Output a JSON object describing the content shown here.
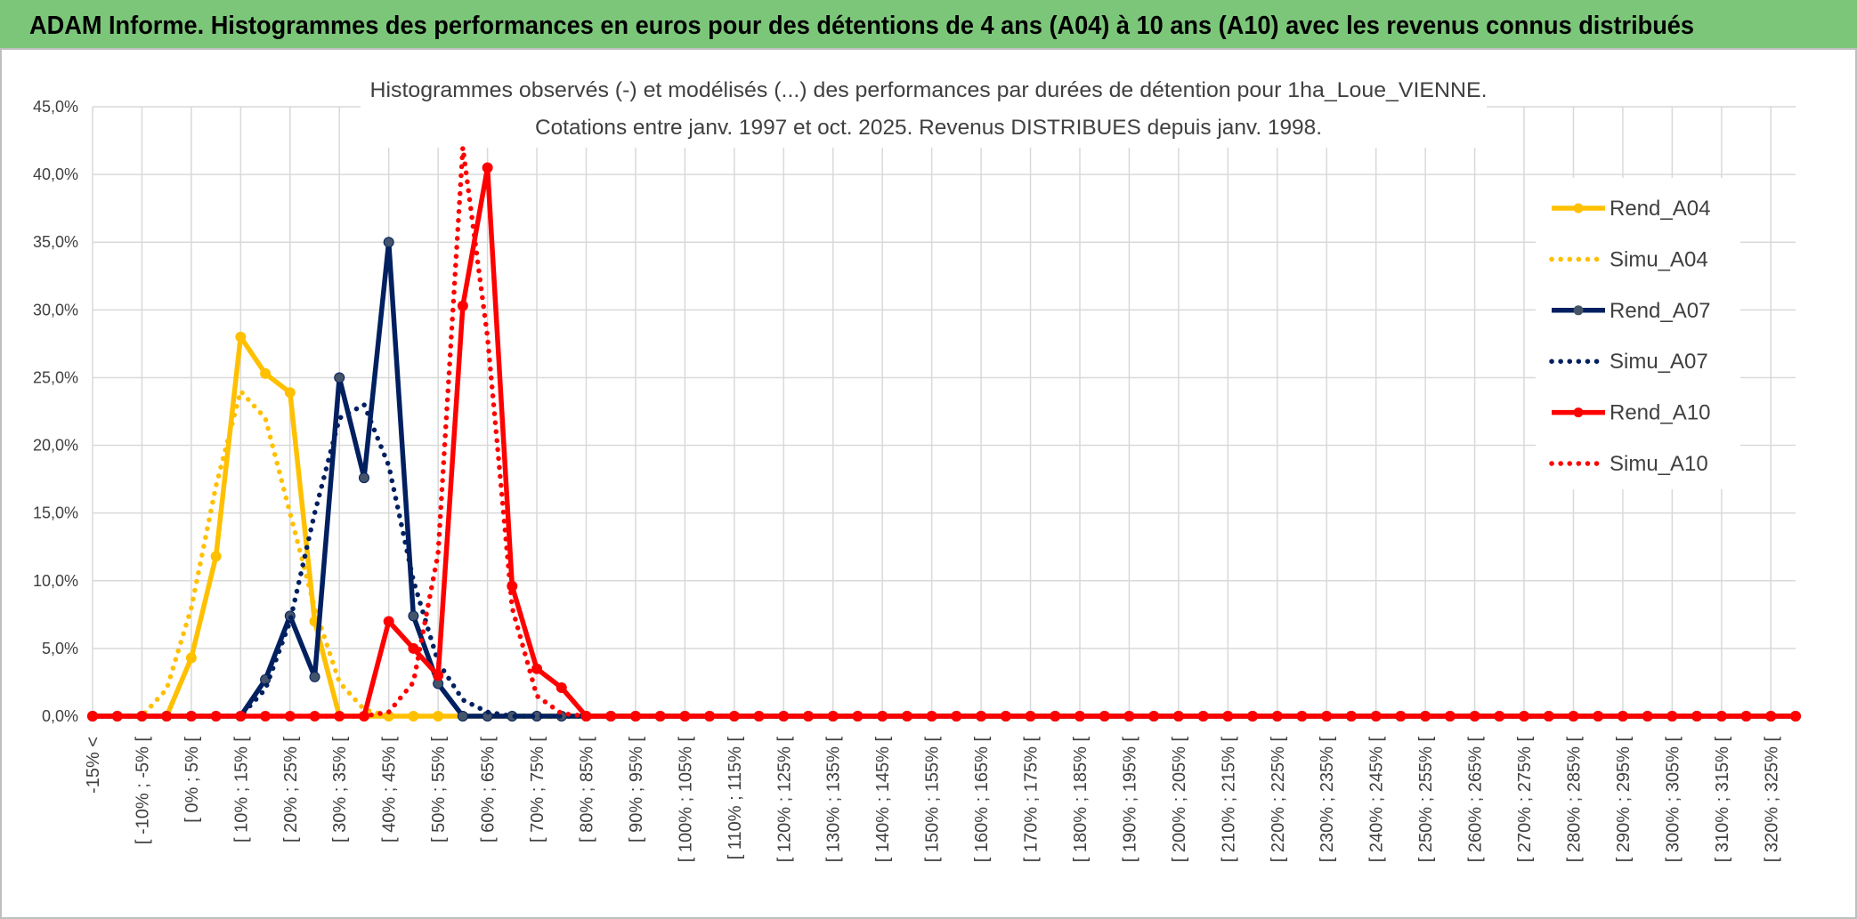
{
  "header": {
    "title": "ADAM Informe. Histogrammes des performances en euros pour des détentions de 4 ans (A04) à 10 ans (A10) avec les revenus connus distribués"
  },
  "chart_data": {
    "type": "line",
    "title": [
      "Histogrammes observés (-) et modélisés (...) des performances par durées de détention pour 1ha_Loue_VIENNE.",
      "Cotations entre janv. 1997 et oct. 2025. Revenus DISTRIBUES depuis janv. 1998."
    ],
    "categories": [
      "-15% <",
      null,
      "[ -10% ; -5% [",
      null,
      "[ 0% ; 5% [",
      null,
      "[ 10% ; 15% [",
      null,
      "[ 20% ; 25% [",
      null,
      "[ 30% ; 35% [",
      null,
      "[ 40% ; 45% [",
      null,
      "[ 50% ; 55% [",
      null,
      "[ 60% ; 65% [",
      null,
      "[ 70% ; 75% [",
      null,
      "[ 80% ; 85% [",
      null,
      "[ 90% ; 95% [",
      null,
      "[ 100% ; 105% [",
      null,
      "[ 110% ; 115% [",
      null,
      "[ 120% ; 125% [",
      null,
      "[ 130% ; 135% [",
      null,
      "[ 140% ; 145% [",
      null,
      "[ 150% ; 155% [",
      null,
      "[ 160% ; 165% [",
      null,
      "[ 170% ; 175% [",
      null,
      "[ 180% ; 185% [",
      null,
      "[ 190% ; 195% [",
      null,
      "[ 200% ; 205% [",
      null,
      "[ 210% ; 215% [",
      null,
      "[ 220% ; 225% [",
      null,
      "[ 230% ; 235% [",
      null,
      "[ 240% ; 245% [",
      null,
      "[ 250% ; 255% [",
      null,
      "[ 260% ; 265% [",
      null,
      "[ 270% ; 275% [",
      null,
      "[ 280% ; 285% [",
      null,
      "[ 290% ; 295% [",
      null,
      "[ 300% ; 305% [",
      null,
      "[ 310% ; 315% [",
      null,
      "[ 320% ; 325% [",
      null
    ],
    "series": [
      {
        "name": "Rend_A04",
        "color": "#FFC000",
        "style": "solid",
        "markers": true,
        "values": [
          0,
          0,
          0,
          0,
          4.3,
          11.8,
          28,
          25.3,
          23.9,
          7,
          0,
          0,
          0,
          0,
          0,
          0,
          0,
          0,
          0,
          0,
          0,
          0,
          0,
          0,
          0,
          0,
          0,
          0,
          0,
          0,
          0,
          0,
          0,
          0,
          0,
          0,
          0,
          0,
          0,
          0,
          0,
          0,
          0,
          0,
          0,
          0,
          0,
          0,
          0,
          0,
          0,
          0,
          0,
          0,
          0,
          0,
          0,
          0,
          0,
          0,
          0,
          0,
          0,
          0,
          0,
          0,
          0,
          0,
          0,
          0
        ]
      },
      {
        "name": "Simu_A04",
        "color": "#FFC000",
        "style": "dotted",
        "markers": false,
        "values": [
          0,
          0,
          0,
          2,
          8,
          17,
          24,
          22,
          15,
          8,
          2.5,
          0.5,
          0,
          0,
          0,
          0,
          0,
          0,
          0,
          0,
          0,
          0,
          0,
          0,
          0,
          0,
          0,
          0,
          0,
          0,
          0,
          0,
          0,
          0,
          0,
          0,
          0,
          0,
          0,
          0,
          0,
          0,
          0,
          0,
          0,
          0,
          0,
          0,
          0,
          0,
          0,
          0,
          0,
          0,
          0,
          0,
          0,
          0,
          0,
          0,
          0,
          0,
          0,
          0,
          0,
          0,
          0,
          0,
          0,
          0
        ]
      },
      {
        "name": "Rend_A07",
        "color": "#002060",
        "style": "solid",
        "markers": true,
        "values": [
          0,
          0,
          0,
          0,
          0,
          0,
          0,
          2.7,
          7.4,
          2.9,
          25,
          17.6,
          35,
          7.4,
          2.4,
          0,
          0,
          0,
          0,
          0,
          0,
          0,
          0,
          0,
          0,
          0,
          0,
          0,
          0,
          0,
          0,
          0,
          0,
          0,
          0,
          0,
          0,
          0,
          0,
          0,
          0,
          0,
          0,
          0,
          0,
          0,
          0,
          0,
          0,
          0,
          0,
          0,
          0,
          0,
          0,
          0,
          0,
          0,
          0,
          0,
          0,
          0,
          0,
          0,
          0,
          0,
          0,
          0,
          0,
          0
        ]
      },
      {
        "name": "Simu_A07",
        "color": "#002060",
        "style": "dotted",
        "markers": false,
        "values": [
          0,
          0,
          0,
          0,
          0,
          0,
          0,
          2,
          7,
          15,
          22,
          23,
          18.5,
          10,
          4,
          1.2,
          0.3,
          0,
          0,
          0,
          0,
          0,
          0,
          0,
          0,
          0,
          0,
          0,
          0,
          0,
          0,
          0,
          0,
          0,
          0,
          0,
          0,
          0,
          0,
          0,
          0,
          0,
          0,
          0,
          0,
          0,
          0,
          0,
          0,
          0,
          0,
          0,
          0,
          0,
          0,
          0,
          0,
          0,
          0,
          0,
          0,
          0,
          0,
          0,
          0,
          0,
          0,
          0,
          0,
          0
        ]
      },
      {
        "name": "Rend_A10",
        "color": "#FF0000",
        "style": "solid",
        "markers": true,
        "values": [
          0,
          0,
          0,
          0,
          0,
          0,
          0,
          0,
          0,
          0,
          0,
          0,
          7,
          5,
          3,
          30.3,
          40.5,
          9.6,
          3.5,
          2.1,
          0,
          0,
          0,
          0,
          0,
          0,
          0,
          0,
          0,
          0,
          0,
          0,
          0,
          0,
          0,
          0,
          0,
          0,
          0,
          0,
          0,
          0,
          0,
          0,
          0,
          0,
          0,
          0,
          0,
          0,
          0,
          0,
          0,
          0,
          0,
          0,
          0,
          0,
          0,
          0,
          0,
          0,
          0,
          0,
          0,
          0,
          0,
          0,
          0,
          0
        ]
      },
      {
        "name": "Simu_A10",
        "color": "#FF0000",
        "style": "dotted",
        "markers": false,
        "values": [
          0,
          0,
          0,
          0,
          0,
          0,
          0,
          0,
          0,
          0,
          0,
          0,
          0.3,
          2.5,
          12,
          42,
          28,
          8,
          1.5,
          0.2,
          0,
          0,
          0,
          0,
          0,
          0,
          0,
          0,
          0,
          0,
          0,
          0,
          0,
          0,
          0,
          0,
          0,
          0,
          0,
          0,
          0,
          0,
          0,
          0,
          0,
          0,
          0,
          0,
          0,
          0,
          0,
          0,
          0,
          0,
          0,
          0,
          0,
          0,
          0,
          0,
          0,
          0,
          0,
          0,
          0,
          0,
          0,
          0,
          0,
          0
        ]
      }
    ],
    "ylim": [
      0,
      45
    ],
    "yticks": [
      {
        "value": 0,
        "label": "0,0%"
      },
      {
        "value": 5,
        "label": "5,0%"
      },
      {
        "value": 10,
        "label": "10,0%"
      },
      {
        "value": 15,
        "label": "15,0%"
      },
      {
        "value": 20,
        "label": "20,0%"
      },
      {
        "value": 25,
        "label": "25,0%"
      },
      {
        "value": 30,
        "label": "30,0%"
      },
      {
        "value": 35,
        "label": "35,0%"
      },
      {
        "value": 40,
        "label": "40,0%"
      },
      {
        "value": 45,
        "label": "45,0%"
      }
    ],
    "grid": true,
    "legend": "right"
  }
}
